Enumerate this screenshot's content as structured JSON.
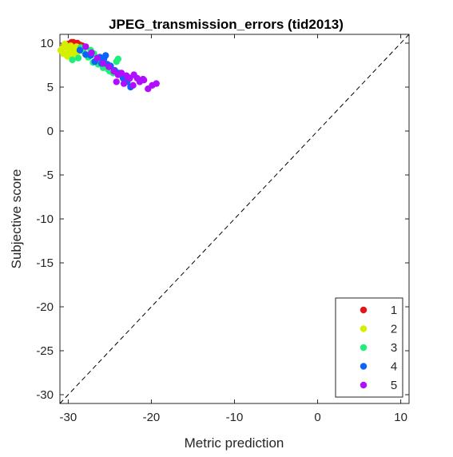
{
  "chart_data": {
    "type": "scatter",
    "title": "JPEG_transmission_errors (tid2013)",
    "xlabel": "Metric prediction",
    "ylabel": "Subjective score",
    "xlim": [
      -31,
      11
    ],
    "ylim": [
      -31,
      11
    ],
    "xticks": [
      -30,
      -20,
      -10,
      0,
      10
    ],
    "yticks": [
      10,
      5,
      0,
      -5,
      -10,
      -15,
      -20,
      -25,
      -30
    ],
    "grid": false,
    "reference_line": "y = x (dashed)",
    "legend_position": "bottom-right",
    "series": [
      {
        "name": "1",
        "color": "#e8141b",
        "points": [
          [
            -30.5,
            9.7
          ],
          [
            -30.0,
            9.9
          ],
          [
            -29.6,
            10.1
          ],
          [
            -29.3,
            9.6
          ],
          [
            -28.9,
            10.0
          ],
          [
            -28.6,
            9.8
          ],
          [
            -28.3,
            9.7
          ],
          [
            -29.0,
            9.4
          ],
          [
            -29.8,
            9.5
          ],
          [
            -28.7,
            9.3
          ],
          [
            -29.4,
            10.1
          ],
          [
            -30.2,
            9.8
          ]
        ]
      },
      {
        "name": "2",
        "color": "#d4f000",
        "points": [
          [
            -30.9,
            9.2
          ],
          [
            -30.6,
            8.8
          ],
          [
            -30.2,
            9.5
          ],
          [
            -29.9,
            9.1
          ],
          [
            -29.5,
            8.7
          ],
          [
            -29.2,
            9.3
          ],
          [
            -30.4,
            9.9
          ],
          [
            -29.7,
            9.7
          ],
          [
            -28.9,
            8.9
          ],
          [
            -30.1,
            8.5
          ],
          [
            -29.0,
            9.6
          ],
          [
            -30.7,
            9.4
          ]
        ]
      },
      {
        "name": "3",
        "color": "#1fef78",
        "points": [
          [
            -29.5,
            8.1
          ],
          [
            -28.8,
            8.3
          ],
          [
            -28.2,
            9.1
          ],
          [
            -27.6,
            8.4
          ],
          [
            -27.0,
            7.8
          ],
          [
            -26.4,
            7.6
          ],
          [
            -25.8,
            7.2
          ],
          [
            -25.2,
            7.0
          ],
          [
            -24.6,
            6.6
          ],
          [
            -24.2,
            7.9
          ],
          [
            -24.0,
            8.2
          ],
          [
            -25.0,
            6.8
          ],
          [
            -26.9,
            8.8
          ],
          [
            -27.3,
            9.2
          ],
          [
            -28.5,
            9.5
          ]
        ]
      },
      {
        "name": "4",
        "color": "#0b64f7",
        "points": [
          [
            -28.6,
            9.2
          ],
          [
            -27.9,
            8.7
          ],
          [
            -27.3,
            8.6
          ],
          [
            -26.8,
            7.9
          ],
          [
            -26.2,
            8.4
          ],
          [
            -25.7,
            8.2
          ],
          [
            -25.3,
            7.6
          ],
          [
            -24.9,
            7.4
          ],
          [
            -24.4,
            6.9
          ],
          [
            -23.9,
            6.6
          ],
          [
            -23.4,
            6.0
          ],
          [
            -22.9,
            5.6
          ],
          [
            -22.5,
            5.0
          ],
          [
            -26.0,
            7.7
          ],
          [
            -25.5,
            8.6
          ]
        ]
      },
      {
        "name": "5",
        "color": "#b10eff",
        "points": [
          [
            -27.9,
            9.6
          ],
          [
            -27.2,
            8.9
          ],
          [
            -26.5,
            8.3
          ],
          [
            -25.8,
            7.7
          ],
          [
            -25.1,
            7.3
          ],
          [
            -24.5,
            6.8
          ],
          [
            -24.0,
            6.4
          ],
          [
            -23.6,
            6.6
          ],
          [
            -23.0,
            6.3
          ],
          [
            -22.6,
            6.0
          ],
          [
            -22.1,
            6.4
          ],
          [
            -21.7,
            6.0
          ],
          [
            -21.4,
            5.6
          ],
          [
            -20.9,
            5.8
          ],
          [
            -20.4,
            4.8
          ],
          [
            -19.9,
            5.2
          ],
          [
            -19.4,
            5.4
          ],
          [
            -24.2,
            5.6
          ],
          [
            -23.3,
            5.4
          ],
          [
            -22.2,
            5.2
          ],
          [
            -21.0,
            5.9
          ],
          [
            -22.8,
            6.1
          ]
        ]
      }
    ]
  }
}
